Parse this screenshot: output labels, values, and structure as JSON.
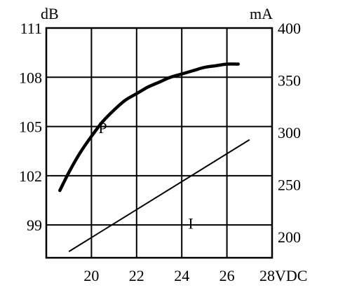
{
  "chart_data": {
    "type": "line",
    "title": "",
    "x_axis": {
      "range": [
        18,
        28
      ],
      "ticks": [
        18,
        20,
        22,
        24,
        26,
        28
      ],
      "tick_labels": [
        "",
        "20",
        "22",
        "24",
        "26",
        "28VDC"
      ]
    },
    "y_left": {
      "unit": "dB",
      "range": [
        97,
        111
      ],
      "ticks": [
        99,
        102,
        105,
        108,
        111
      ],
      "tick_labels": [
        "99",
        "102",
        "105",
        "108",
        "111"
      ]
    },
    "y_right": {
      "unit": "mA",
      "range": [
        180,
        400
      ],
      "ticks": [
        200,
        250,
        300,
        350,
        400
      ],
      "tick_labels": [
        "200",
        "250",
        "300",
        "350",
        "400"
      ]
    },
    "grid": true,
    "series": [
      {
        "name": "P",
        "axis": "left",
        "style": "thick",
        "x": [
          18.6,
          19.0,
          19.5,
          20.0,
          20.5,
          21.0,
          21.5,
          22.0,
          22.5,
          23.0,
          23.5,
          24.0,
          24.5,
          25.0,
          25.5,
          26.0,
          26.5
        ],
        "y": [
          101.1,
          102.2,
          103.4,
          104.4,
          105.3,
          106.0,
          106.6,
          107.0,
          107.4,
          107.7,
          108.0,
          108.2,
          108.4,
          108.6,
          108.7,
          108.8,
          108.8
        ]
      },
      {
        "name": "I",
        "axis": "right",
        "style": "thin",
        "x": [
          19.0,
          27.0
        ],
        "y": [
          186,
          293
        ]
      }
    ],
    "series_labels": [
      {
        "series": "P",
        "text": "P",
        "x": 20.5,
        "y": 104.6
      },
      {
        "series": "I",
        "text": "I",
        "x": 24.4,
        "y": 208
      }
    ]
  }
}
